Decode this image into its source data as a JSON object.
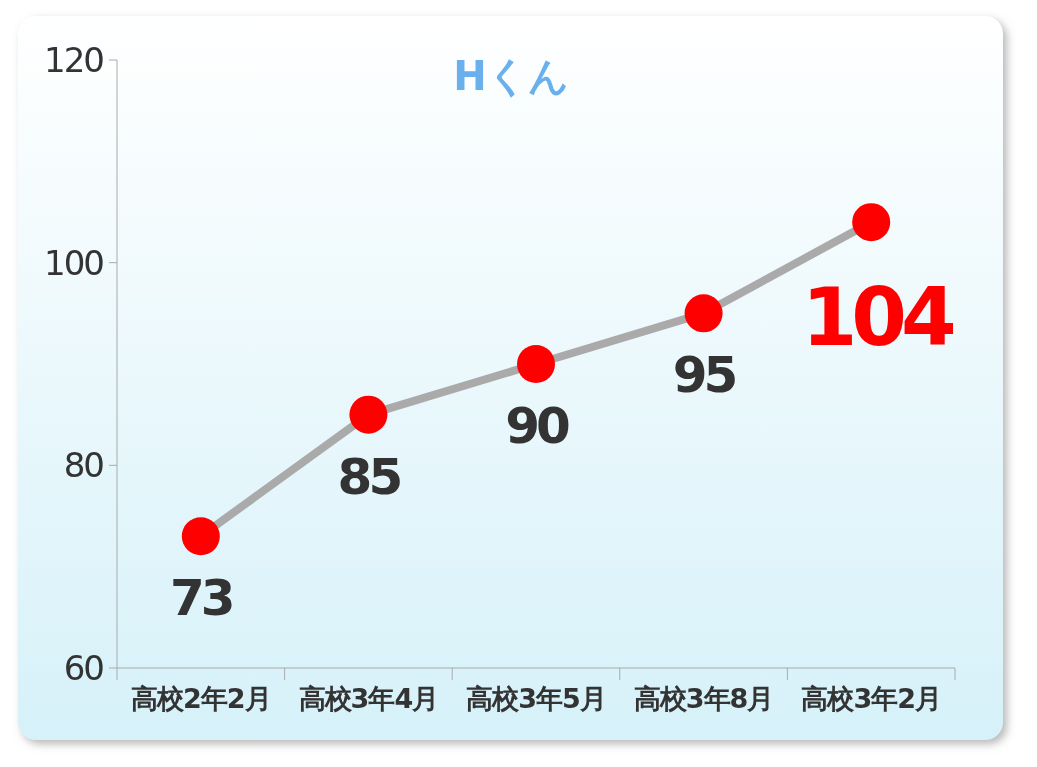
{
  "chart_data": {
    "type": "line",
    "title": "Hくん",
    "categories": [
      "高校2年2月",
      "高校3年4月",
      "高校3年5月",
      "高校3年8月",
      "高校3年2月"
    ],
    "series": [
      {
        "color": "#aaaaaa",
        "colors": [
          "#ff0000",
          "#ff0000",
          "#ff0000",
          "#ff0000",
          "#ff0000"
        ],
        "values": [
          73,
          85,
          90,
          95,
          104
        ]
      }
    ],
    "ylim": [
      60,
      120
    ],
    "yticks": [
      60,
      80,
      100,
      120
    ],
    "marker": "circle",
    "line_style": "solid",
    "data_labels": true,
    "grid": false
  }
}
